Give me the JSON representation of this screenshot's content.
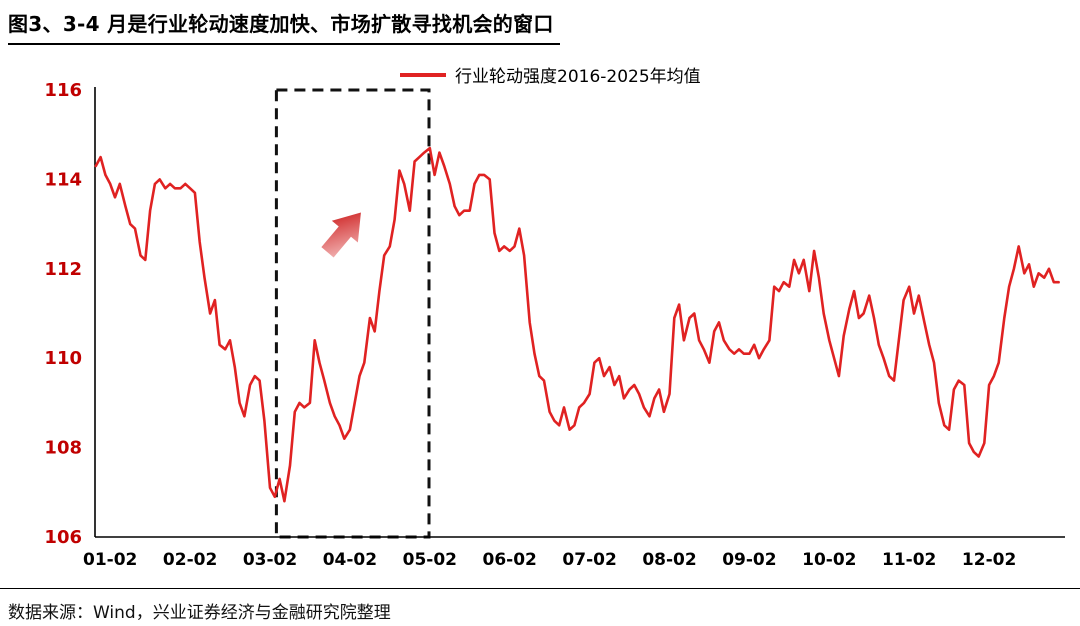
{
  "page": {
    "title": "图3、3-4 月是行业轮动速度加快、市场扩散寻找机会的窗口",
    "footer": "数据来源：Wind，兴业证券经济与金融研究院整理"
  },
  "legend": {
    "label": "行业轮动强度2016-2025年均值"
  },
  "colors": {
    "line": "#e02222",
    "ytick": "#c00000",
    "xtick": "#000000",
    "axis": "#000000",
    "box": "#111111",
    "arrow_from": "#f6c5c5",
    "arrow_to": "#c90f0f"
  },
  "chart_data": {
    "type": "line",
    "title": "图3、3-4 月是行业轮动速度加快、市场扩散寻找机会的窗口",
    "legend": [
      "行业轮动强度2016-2025年均值"
    ],
    "legend_position": "top-center",
    "grid": false,
    "xlabel": "",
    "ylabel": "",
    "ylim": [
      106,
      116
    ],
    "yticks": [
      106,
      108,
      110,
      112,
      114,
      116
    ],
    "xticks": [
      "01-02",
      "02-02",
      "03-02",
      "04-02",
      "05-02",
      "06-02",
      "07-02",
      "08-02",
      "09-02",
      "10-02",
      "11-02",
      "12-02"
    ],
    "xtick_positions": [
      1,
      2,
      3,
      4,
      5,
      6,
      7,
      8,
      9,
      10,
      11,
      12
    ],
    "xlim": [
      0.81,
      12.95
    ],
    "annotations": {
      "highlight_box": {
        "x0": 3.08,
        "x1": 4.99,
        "y0": 106,
        "y1": 116,
        "style": "dashed",
        "meaning": "3-4月窗口"
      },
      "arrow": {
        "x": 3.72,
        "y": 112.37,
        "angle_deg": -50,
        "length": 52,
        "meaning": "rotation intensity rising"
      }
    },
    "series": [
      {
        "name": "行业轮动强度2016-2025年均值",
        "color": "#e02222",
        "points": [
          [
            0.82,
            114.3
          ],
          [
            0.88,
            114.5
          ],
          [
            0.94,
            114.1
          ],
          [
            1.0,
            113.9
          ],
          [
            1.06,
            113.6
          ],
          [
            1.12,
            113.9
          ],
          [
            1.19,
            113.4
          ],
          [
            1.25,
            113.0
          ],
          [
            1.31,
            112.9
          ],
          [
            1.38,
            112.3
          ],
          [
            1.44,
            112.2
          ],
          [
            1.5,
            113.3
          ],
          [
            1.56,
            113.9
          ],
          [
            1.62,
            114.0
          ],
          [
            1.69,
            113.8
          ],
          [
            1.75,
            113.9
          ],
          [
            1.81,
            113.8
          ],
          [
            1.88,
            113.8
          ],
          [
            1.94,
            113.9
          ],
          [
            2.0,
            113.8
          ],
          [
            2.06,
            113.7
          ],
          [
            2.12,
            112.6
          ],
          [
            2.18,
            111.8
          ],
          [
            2.25,
            111.0
          ],
          [
            2.31,
            111.3
          ],
          [
            2.37,
            110.3
          ],
          [
            2.44,
            110.2
          ],
          [
            2.5,
            110.4
          ],
          [
            2.56,
            109.8
          ],
          [
            2.62,
            109.0
          ],
          [
            2.68,
            108.7
          ],
          [
            2.75,
            109.4
          ],
          [
            2.81,
            109.6
          ],
          [
            2.87,
            109.5
          ],
          [
            2.93,
            108.6
          ],
          [
            3.0,
            107.1
          ],
          [
            3.06,
            106.9
          ],
          [
            3.12,
            107.3
          ],
          [
            3.18,
            106.8
          ],
          [
            3.25,
            107.6
          ],
          [
            3.31,
            108.8
          ],
          [
            3.37,
            109.0
          ],
          [
            3.43,
            108.9
          ],
          [
            3.5,
            109.0
          ],
          [
            3.56,
            110.4
          ],
          [
            3.62,
            109.9
          ],
          [
            3.68,
            109.5
          ],
          [
            3.75,
            109.0
          ],
          [
            3.81,
            108.7
          ],
          [
            3.87,
            108.5
          ],
          [
            3.93,
            108.2
          ],
          [
            4.0,
            108.4
          ],
          [
            4.06,
            109.0
          ],
          [
            4.12,
            109.6
          ],
          [
            4.18,
            109.9
          ],
          [
            4.25,
            110.9
          ],
          [
            4.31,
            110.6
          ],
          [
            4.37,
            111.5
          ],
          [
            4.43,
            112.3
          ],
          [
            4.5,
            112.5
          ],
          [
            4.56,
            113.1
          ],
          [
            4.62,
            114.2
          ],
          [
            4.68,
            113.9
          ],
          [
            4.75,
            113.3
          ],
          [
            4.81,
            114.4
          ],
          [
            4.87,
            114.5
          ],
          [
            4.93,
            114.6
          ],
          [
            5.0,
            114.7
          ],
          [
            5.06,
            114.1
          ],
          [
            5.12,
            114.6
          ],
          [
            5.18,
            114.3
          ],
          [
            5.25,
            113.9
          ],
          [
            5.31,
            113.4
          ],
          [
            5.37,
            113.2
          ],
          [
            5.43,
            113.3
          ],
          [
            5.5,
            113.3
          ],
          [
            5.56,
            113.9
          ],
          [
            5.62,
            114.1
          ],
          [
            5.68,
            114.1
          ],
          [
            5.75,
            114.0
          ],
          [
            5.81,
            112.8
          ],
          [
            5.87,
            112.4
          ],
          [
            5.93,
            112.5
          ],
          [
            6.0,
            112.4
          ],
          [
            6.06,
            112.5
          ],
          [
            6.12,
            112.9
          ],
          [
            6.18,
            112.3
          ],
          [
            6.25,
            110.8
          ],
          [
            6.31,
            110.1
          ],
          [
            6.37,
            109.6
          ],
          [
            6.43,
            109.5
          ],
          [
            6.5,
            108.8
          ],
          [
            6.56,
            108.6
          ],
          [
            6.62,
            108.5
          ],
          [
            6.68,
            108.9
          ],
          [
            6.75,
            108.4
          ],
          [
            6.81,
            108.5
          ],
          [
            6.87,
            108.9
          ],
          [
            6.93,
            109.0
          ],
          [
            7.0,
            109.2
          ],
          [
            7.06,
            109.9
          ],
          [
            7.12,
            110.0
          ],
          [
            7.18,
            109.6
          ],
          [
            7.25,
            109.8
          ],
          [
            7.31,
            109.4
          ],
          [
            7.37,
            109.6
          ],
          [
            7.43,
            109.1
          ],
          [
            7.5,
            109.3
          ],
          [
            7.56,
            109.4
          ],
          [
            7.62,
            109.2
          ],
          [
            7.68,
            108.9
          ],
          [
            7.75,
            108.7
          ],
          [
            7.81,
            109.1
          ],
          [
            7.87,
            109.3
          ],
          [
            7.93,
            108.8
          ],
          [
            8.0,
            109.2
          ],
          [
            8.06,
            110.9
          ],
          [
            8.12,
            111.2
          ],
          [
            8.18,
            110.4
          ],
          [
            8.25,
            110.9
          ],
          [
            8.31,
            111.0
          ],
          [
            8.37,
            110.4
          ],
          [
            8.43,
            110.2
          ],
          [
            8.5,
            109.9
          ],
          [
            8.56,
            110.6
          ],
          [
            8.62,
            110.8
          ],
          [
            8.68,
            110.4
          ],
          [
            8.75,
            110.2
          ],
          [
            8.81,
            110.1
          ],
          [
            8.87,
            110.2
          ],
          [
            8.93,
            110.1
          ],
          [
            9.0,
            110.1
          ],
          [
            9.06,
            110.3
          ],
          [
            9.12,
            110.0
          ],
          [
            9.18,
            110.2
          ],
          [
            9.25,
            110.4
          ],
          [
            9.31,
            111.6
          ],
          [
            9.37,
            111.5
          ],
          [
            9.43,
            111.7
          ],
          [
            9.5,
            111.6
          ],
          [
            9.56,
            112.2
          ],
          [
            9.62,
            111.9
          ],
          [
            9.68,
            112.2
          ],
          [
            9.75,
            111.5
          ],
          [
            9.81,
            112.4
          ],
          [
            9.87,
            111.8
          ],
          [
            9.93,
            111.0
          ],
          [
            10.0,
            110.4
          ],
          [
            10.06,
            110.0
          ],
          [
            10.12,
            109.6
          ],
          [
            10.18,
            110.5
          ],
          [
            10.25,
            111.1
          ],
          [
            10.31,
            111.5
          ],
          [
            10.37,
            110.9
          ],
          [
            10.43,
            111.0
          ],
          [
            10.5,
            111.4
          ],
          [
            10.56,
            110.9
          ],
          [
            10.62,
            110.3
          ],
          [
            10.68,
            110.0
          ],
          [
            10.75,
            109.6
          ],
          [
            10.81,
            109.5
          ],
          [
            10.87,
            110.4
          ],
          [
            10.93,
            111.3
          ],
          [
            11.0,
            111.6
          ],
          [
            11.06,
            111.0
          ],
          [
            11.12,
            111.4
          ],
          [
            11.19,
            110.8
          ],
          [
            11.25,
            110.3
          ],
          [
            11.31,
            109.9
          ],
          [
            11.37,
            109.0
          ],
          [
            11.44,
            108.5
          ],
          [
            11.5,
            108.4
          ],
          [
            11.56,
            109.3
          ],
          [
            11.62,
            109.5
          ],
          [
            11.69,
            109.4
          ],
          [
            11.75,
            108.1
          ],
          [
            11.81,
            107.9
          ],
          [
            11.87,
            107.8
          ],
          [
            11.94,
            108.1
          ],
          [
            12.0,
            109.4
          ],
          [
            12.06,
            109.6
          ],
          [
            12.12,
            109.9
          ],
          [
            12.19,
            110.9
          ],
          [
            12.25,
            111.6
          ],
          [
            12.31,
            112.0
          ],
          [
            12.37,
            112.5
          ],
          [
            12.44,
            111.9
          ],
          [
            12.5,
            112.1
          ],
          [
            12.56,
            111.6
          ],
          [
            12.62,
            111.9
          ],
          [
            12.69,
            111.8
          ],
          [
            12.75,
            112.0
          ],
          [
            12.81,
            111.7
          ],
          [
            12.87,
            111.7
          ]
        ]
      }
    ]
  }
}
